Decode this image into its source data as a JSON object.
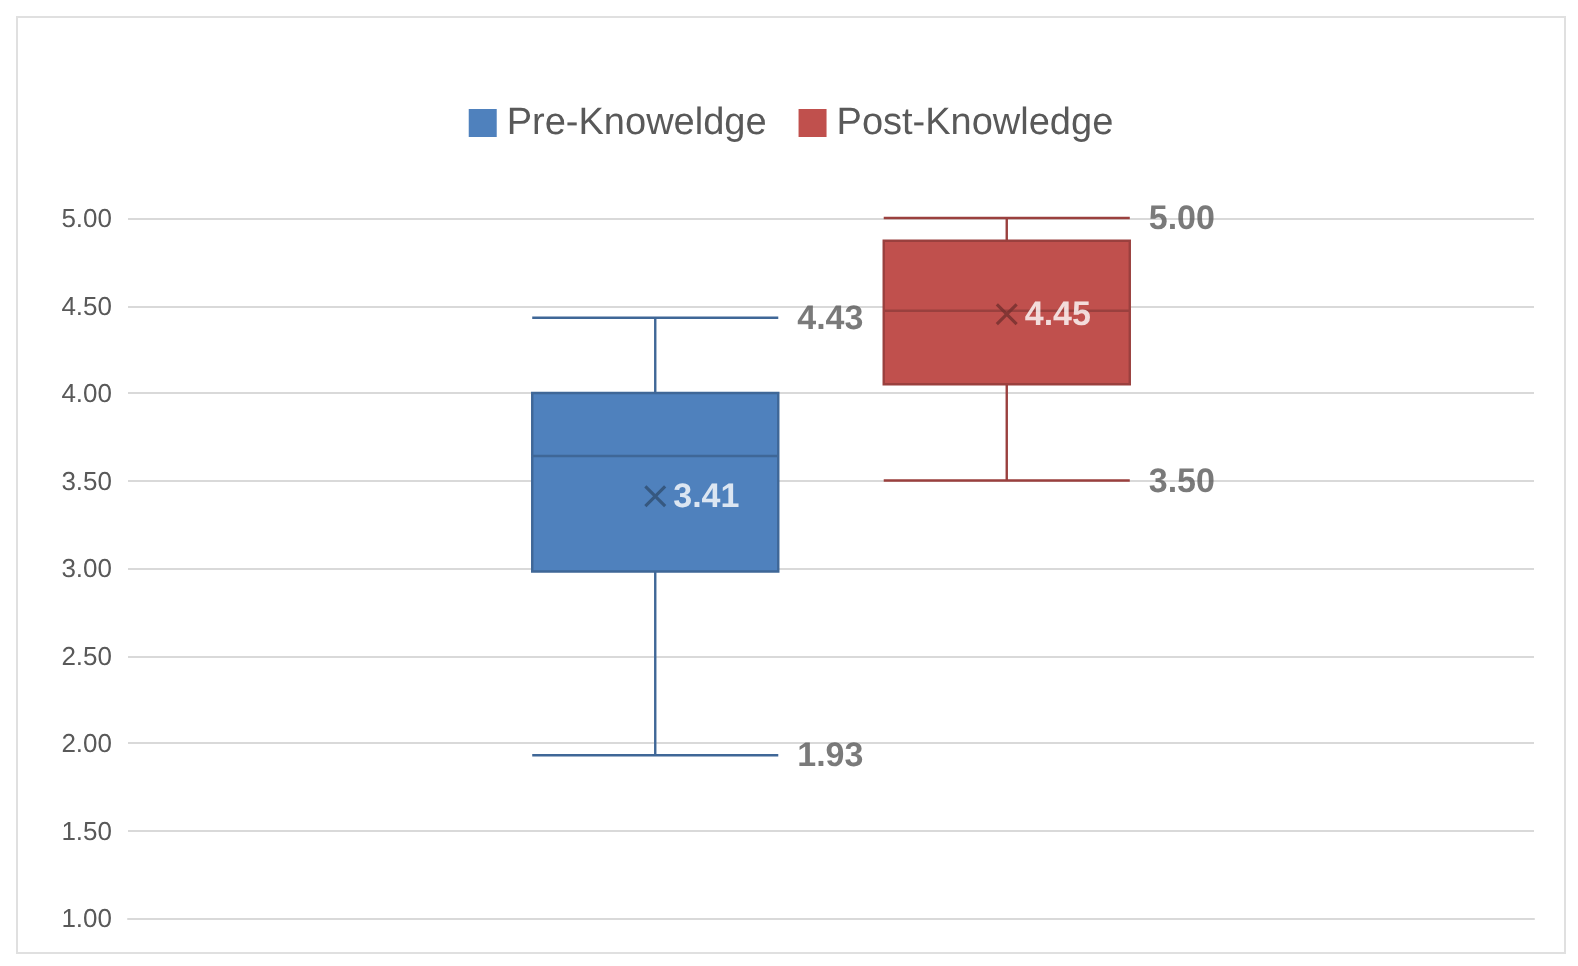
{
  "chart_data": {
    "type": "box",
    "categories": [
      null
    ],
    "series": [
      {
        "name": "Pre-Knoweldge",
        "color": "#4f81bd",
        "boxes": [
          {
            "low": 1.93,
            "q1": 2.98,
            "median": 3.64,
            "q3": 4.0,
            "high": 4.43,
            "mean": 3.41
          }
        ]
      },
      {
        "name": "Post-Knowledge",
        "color": "#c0504d",
        "boxes": [
          {
            "low": 3.5,
            "q1": 4.05,
            "median": 4.47,
            "q3": 4.87,
            "high": 5.0,
            "mean": 4.45
          }
        ]
      }
    ],
    "ylim": [
      1,
      5
    ],
    "yticks": [
      {
        "value": 1,
        "label": "1.00"
      },
      {
        "value": 1.5,
        "label": "1.50"
      },
      {
        "value": 2,
        "label": "2.00"
      },
      {
        "value": 2.5,
        "label": "2.50"
      },
      {
        "value": 3,
        "label": "3.00"
      },
      {
        "value": 3.5,
        "label": "3.50"
      },
      {
        "value": 4,
        "label": "4.00"
      },
      {
        "value": 4.5,
        "label": "4.50"
      },
      {
        "value": 5,
        "label": "5.00"
      }
    ],
    "grid": "y",
    "legend": "top",
    "annotations": [
      "4.43",
      "1.93",
      "3.41",
      "5.00",
      "3.50",
      "4.45"
    ]
  }
}
